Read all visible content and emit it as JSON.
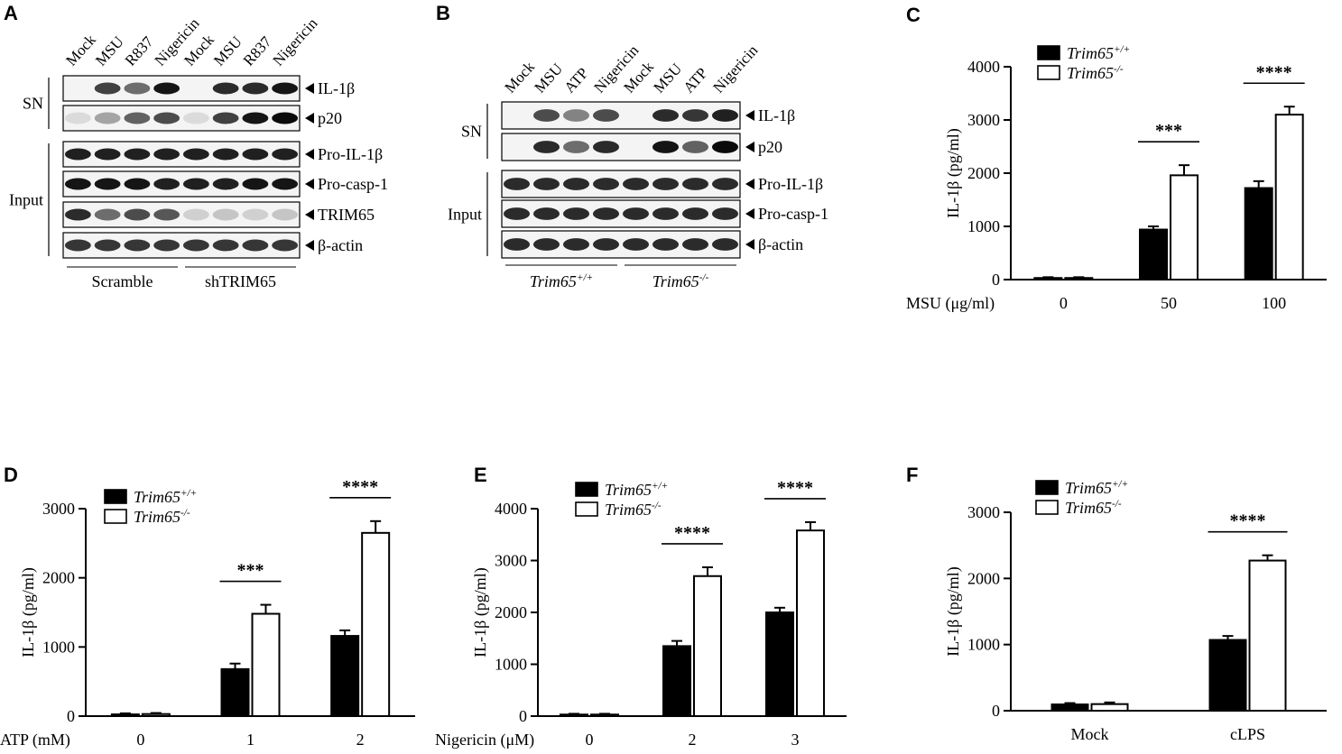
{
  "panels": {
    "A": {
      "label": "A",
      "lanes": [
        "Mock",
        "MSU",
        "R837",
        "Nigericin",
        "Mock",
        "MSU",
        "R837",
        "Nigericin"
      ],
      "sections": {
        "sn": "SN",
        "input": "Input"
      },
      "blots": [
        {
          "name": "IL-1β",
          "section": "sn",
          "intensity": [
            0.0,
            0.75,
            0.55,
            0.95,
            0.0,
            0.85,
            0.85,
            0.95
          ]
        },
        {
          "name": "p20",
          "section": "sn",
          "intensity": [
            0.05,
            0.3,
            0.6,
            0.7,
            0.05,
            0.75,
            0.95,
            1.0
          ]
        },
        {
          "name": "Pro-IL-1β",
          "section": "input",
          "intensity": [
            0.9,
            0.9,
            0.9,
            0.9,
            0.9,
            0.9,
            0.9,
            0.9
          ]
        },
        {
          "name": "Pro-casp-1",
          "section": "input",
          "intensity": [
            0.95,
            0.95,
            0.95,
            0.9,
            0.9,
            0.9,
            0.95,
            0.95
          ]
        },
        {
          "name": "TRIM65",
          "section": "input",
          "intensity": [
            0.85,
            0.55,
            0.7,
            0.65,
            0.1,
            0.15,
            0.1,
            0.15
          ]
        },
        {
          "name": "β-actin",
          "section": "input",
          "intensity": [
            0.8,
            0.8,
            0.8,
            0.8,
            0.8,
            0.8,
            0.8,
            0.8
          ]
        }
      ],
      "groups": [
        "Scramble",
        "shTRIM65"
      ]
    },
    "B": {
      "label": "B",
      "lanes": [
        "Mock",
        "MSU",
        "ATP",
        "Nigericin",
        "Mock",
        "MSU",
        "ATP",
        "Nigericin"
      ],
      "sections": {
        "sn": "SN",
        "input": "Input"
      },
      "blots": [
        {
          "name": "IL-1β",
          "section": "sn",
          "intensity": [
            0.0,
            0.7,
            0.45,
            0.7,
            0.0,
            0.85,
            0.8,
            0.9
          ]
        },
        {
          "name": "p20",
          "section": "sn",
          "intensity": [
            0.0,
            0.85,
            0.55,
            0.85,
            0.0,
            0.95,
            0.6,
            1.0
          ]
        },
        {
          "name": "Pro-IL-1β",
          "section": "input",
          "intensity": [
            0.85,
            0.85,
            0.85,
            0.85,
            0.85,
            0.85,
            0.85,
            0.85
          ]
        },
        {
          "name": "Pro-casp-1",
          "section": "input",
          "intensity": [
            0.85,
            0.85,
            0.85,
            0.85,
            0.85,
            0.85,
            0.85,
            0.85
          ]
        },
        {
          "name": "β-actin",
          "section": "input",
          "intensity": [
            0.85,
            0.85,
            0.85,
            0.85,
            0.85,
            0.85,
            0.85,
            0.85
          ]
        }
      ],
      "groups": [
        {
          "gene": "Trim65",
          "sup": "+/+"
        },
        {
          "gene": "Trim65",
          "sup": "-/-"
        }
      ]
    }
  },
  "chart_data": [
    {
      "panel": "C",
      "type": "bar",
      "ylabel": "IL-1β (pg/ml)",
      "xlabel": "MSU (μg/ml)",
      "categories": [
        "0",
        "50",
        "100"
      ],
      "ylim": [
        0,
        4000
      ],
      "yticks": [
        0,
        1000,
        2000,
        3000,
        4000
      ],
      "series": [
        {
          "name": "Trim65",
          "sup": "+/+",
          "fill": "#000000",
          "values": [
            30,
            940,
            1720
          ],
          "errors": [
            15,
            60,
            130
          ]
        },
        {
          "name": "Trim65",
          "sup": "-/-",
          "fill": "#ffffff",
          "values": [
            30,
            1960,
            3100
          ],
          "errors": [
            15,
            190,
            150
          ]
        }
      ],
      "significance": [
        null,
        "***",
        "****"
      ],
      "legend": "top-left"
    },
    {
      "panel": "D",
      "type": "bar",
      "ylabel": "IL-1β (pg/ml)",
      "xlabel": "ATP (mM)",
      "categories": [
        "0",
        "1",
        "2"
      ],
      "ylim": [
        0,
        3000
      ],
      "yticks": [
        0,
        1000,
        2000,
        3000
      ],
      "series": [
        {
          "name": "Trim65",
          "sup": "+/+",
          "fill": "#000000",
          "values": [
            25,
            680,
            1160
          ],
          "errors": [
            15,
            80,
            80
          ]
        },
        {
          "name": "Trim65",
          "sup": "-/-",
          "fill": "#ffffff",
          "values": [
            30,
            1480,
            2650
          ],
          "errors": [
            15,
            130,
            170
          ]
        }
      ],
      "significance": [
        null,
        "***",
        "****"
      ],
      "legend": "top-left"
    },
    {
      "panel": "E",
      "type": "bar",
      "ylabel": "IL-1β (pg/ml)",
      "xlabel": "Nigericin (μM)",
      "categories": [
        "0",
        "2",
        "3"
      ],
      "ylim": [
        0,
        4000
      ],
      "yticks": [
        0,
        1000,
        2000,
        3000,
        4000
      ],
      "series": [
        {
          "name": "Trim65",
          "sup": "+/+",
          "fill": "#000000",
          "values": [
            30,
            1350,
            2000
          ],
          "errors": [
            15,
            100,
            90
          ]
        },
        {
          "name": "Trim65",
          "sup": "-/-",
          "fill": "#ffffff",
          "values": [
            30,
            2700,
            3580
          ],
          "errors": [
            15,
            170,
            160
          ]
        }
      ],
      "significance": [
        null,
        "****",
        "****"
      ],
      "legend": "top-left"
    },
    {
      "panel": "F",
      "type": "bar",
      "ylabel": "IL-1β (pg/ml)",
      "xlabel": "",
      "categories": [
        "Mock",
        "cLPS"
      ],
      "ylim": [
        0,
        3000
      ],
      "yticks": [
        0,
        1000,
        2000,
        3000
      ],
      "series": [
        {
          "name": "Trim65",
          "sup": "+/+",
          "fill": "#000000",
          "values": [
            95,
            1070
          ],
          "errors": [
            20,
            60
          ]
        },
        {
          "name": "Trim65",
          "sup": "-/-",
          "fill": "#ffffff",
          "values": [
            100,
            2270
          ],
          "errors": [
            25,
            80
          ]
        }
      ],
      "significance": [
        null,
        "****"
      ],
      "legend": "top-left"
    }
  ]
}
